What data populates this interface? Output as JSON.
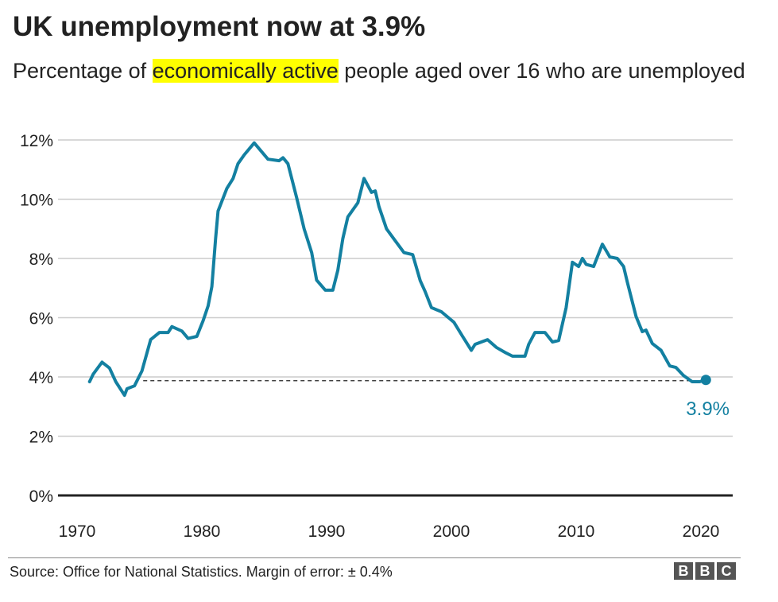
{
  "title": "UK unemployment now at 3.9%",
  "subtitle": {
    "before": "Percentage of ",
    "highlight": "economically active",
    "after": " people aged over 16 who are unemployed"
  },
  "footer": {
    "source": "Source: Office for National Statistics. Margin of error: ± 0.4%",
    "logo": "BBC"
  },
  "colors": {
    "line": "#1380a1",
    "highlight": "#ffff00",
    "grid": "#cccccc",
    "baseline": "#222222"
  },
  "chart_data": {
    "type": "line",
    "title": "UK unemployment now at 3.9%",
    "xlabel": "",
    "ylabel": "",
    "xlim": [
      1970,
      2022
    ],
    "ylim": [
      0,
      12
    ],
    "grid": true,
    "x_ticks": [
      1970,
      1980,
      1990,
      2000,
      2010,
      2020
    ],
    "x_tick_labels": [
      "1970",
      "1980",
      "1990",
      "2000",
      "2010",
      "2020"
    ],
    "y_ticks": [
      0,
      2,
      4,
      6,
      8,
      10,
      12
    ],
    "y_tick_labels": [
      "0%",
      "2%",
      "4%",
      "6%",
      "8%",
      "10%",
      "12%"
    ],
    "series": [
      {
        "x": [
          1971.0,
          1971.3,
          1972.0,
          1972.6,
          1973.1,
          1973.8,
          1974.0,
          1974.6,
          1975.2,
          1975.9,
          1976.6,
          1977.3,
          1977.6,
          1978.4,
          1978.9,
          1979.6,
          1980.1,
          1980.5,
          1980.8,
          1981.1,
          1981.3,
          1982.0,
          1982.5,
          1982.9,
          1983.4,
          1984.2,
          1985.3,
          1986.2,
          1986.5,
          1986.9,
          1987.6,
          1988.2,
          1988.8,
          1989.2,
          1989.9,
          1990.5,
          1990.9,
          1991.3,
          1991.7,
          1992.5,
          1993.0,
          1993.6,
          1993.9,
          1994.2,
          1994.8,
          1995.5,
          1996.2,
          1996.9,
          1997.5,
          1997.9,
          1998.4,
          1999.2,
          2000.2,
          2000.9,
          2001.6,
          2001.9,
          2002.9,
          2003.6,
          2004.3,
          2004.9,
          2005.9,
          2006.2,
          2006.7,
          2007.5,
          2008.1,
          2008.6,
          2009.2,
          2009.7,
          2010.2,
          2010.5,
          2010.8,
          2011.4,
          2012.1,
          2012.7,
          2013.3,
          2013.8,
          2014.1,
          2014.8,
          2015.3,
          2015.6,
          2016.1,
          2016.8,
          2017.5,
          2018.0,
          2018.6,
          2019.3,
          2019.9,
          2020.4
        ],
        "y": [
          3.84,
          4.1,
          4.5,
          4.3,
          3.84,
          3.38,
          3.6,
          3.7,
          4.2,
          5.26,
          5.5,
          5.5,
          5.7,
          5.55,
          5.3,
          5.37,
          5.9,
          6.4,
          7.05,
          8.67,
          9.6,
          10.36,
          10.7,
          11.2,
          11.5,
          11.9,
          11.35,
          11.3,
          11.4,
          11.2,
          10.05,
          9.0,
          8.2,
          7.27,
          6.93,
          6.93,
          7.6,
          8.67,
          9.4,
          9.88,
          10.7,
          10.23,
          10.28,
          9.75,
          9.0,
          8.6,
          8.2,
          8.13,
          7.25,
          6.88,
          6.34,
          6.2,
          5.85,
          5.37,
          4.9,
          5.1,
          5.26,
          5.0,
          4.83,
          4.7,
          4.7,
          5.1,
          5.5,
          5.5,
          5.18,
          5.23,
          6.34,
          7.87,
          7.73,
          8.0,
          7.8,
          7.73,
          8.48,
          8.05,
          8.0,
          7.73,
          7.2,
          6.04,
          5.53,
          5.58,
          5.13,
          4.9,
          4.37,
          4.32,
          4.05,
          3.84,
          3.84,
          3.9
        ]
      }
    ],
    "reference_line": {
      "value": 3.9,
      "style": "dashed"
    },
    "annotation": {
      "label": "3.9%",
      "x": 2020.4,
      "y": 3.9
    }
  }
}
